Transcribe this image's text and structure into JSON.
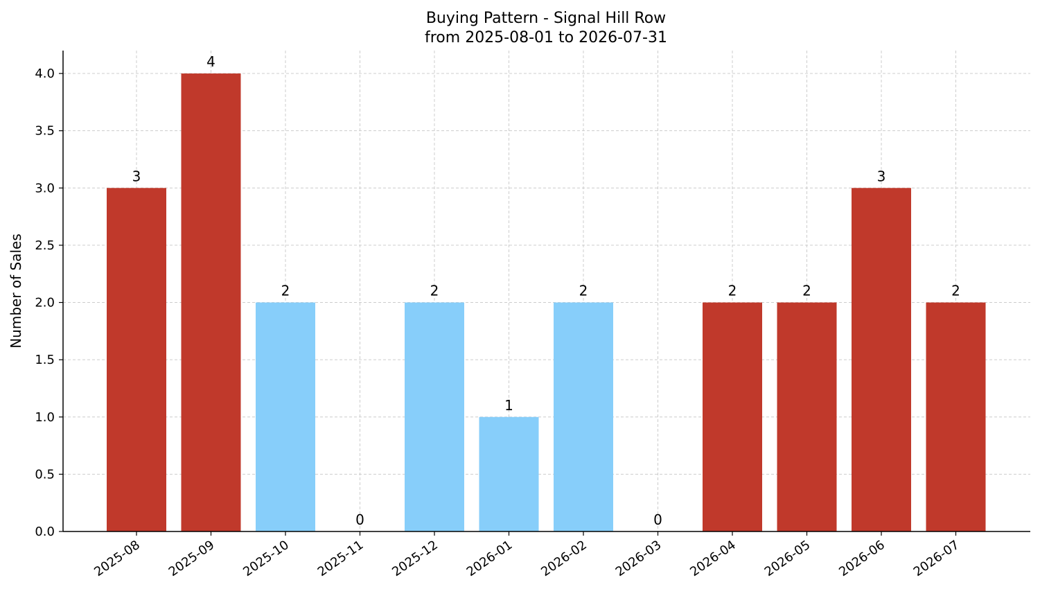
{
  "chart_data": {
    "type": "bar",
    "title": "Buying Pattern - Signal Hill Row",
    "subtitle": "from 2025-08-01 to 2026-07-31",
    "xlabel": "",
    "ylabel": "Number of Sales",
    "ylim": [
      0,
      4.2
    ],
    "yticks": [
      "0.0",
      "0.5",
      "1.0",
      "1.5",
      "2.0",
      "2.5",
      "3.0",
      "3.5",
      "4.0"
    ],
    "grid": true,
    "categories": [
      "2025-08",
      "2025-09",
      "2025-10",
      "2025-11",
      "2025-12",
      "2026-01",
      "2026-02",
      "2026-03",
      "2026-04",
      "2026-05",
      "2026-06",
      "2026-07"
    ],
    "values": [
      3,
      4,
      2,
      0,
      2,
      1,
      2,
      0,
      2,
      2,
      3,
      2
    ],
    "data_labels": [
      "3",
      "4",
      "2",
      "0",
      "2",
      "1",
      "2",
      "0",
      "2",
      "2",
      "3",
      "2"
    ],
    "bar_colors": [
      "#c0392b",
      "#c0392b",
      "#87cefa",
      "#87cefa",
      "#87cefa",
      "#87cefa",
      "#87cefa",
      "#87cefa",
      "#c0392b",
      "#c0392b",
      "#c0392b",
      "#c0392b"
    ]
  }
}
